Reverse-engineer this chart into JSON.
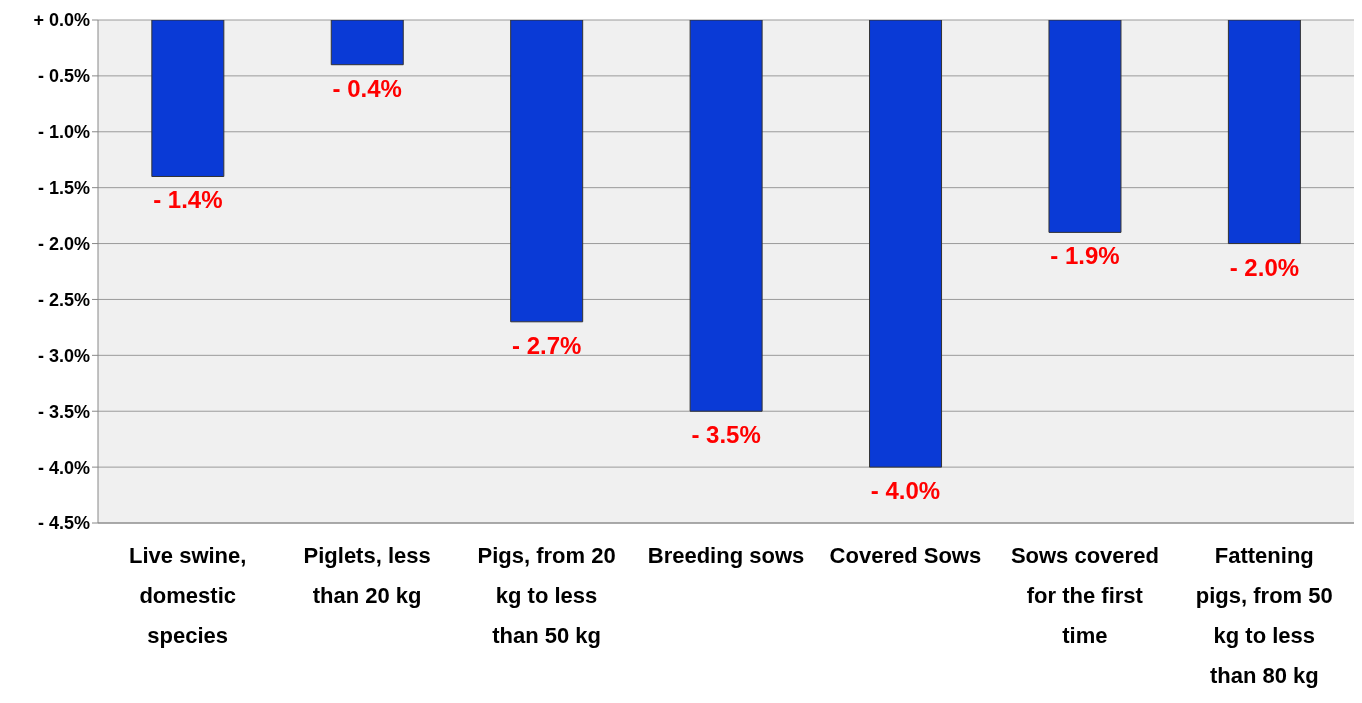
{
  "chart_data": {
    "type": "bar",
    "categories": [
      "Live swine, domestic species",
      "Piglets, less than 20 kg",
      "Pigs, from 20 kg to less than 50 kg",
      "Breeding sows",
      "Covered Sows",
      "Sows covered for the first time",
      "Fattening pigs, from 50 kg to less than 80 kg"
    ],
    "values": [
      -1.4,
      -0.4,
      -2.7,
      -3.5,
      -4.0,
      -1.9,
      -2.0
    ],
    "value_labels": [
      "- 1.4%",
      "- 0.4%",
      "- 2.7%",
      "- 3.5%",
      "- 4.0%",
      "- 1.9%",
      "- 2.0%"
    ],
    "color": "#0a3ad6",
    "ylim": [
      -4.5,
      0
    ],
    "yticks": [
      {
        "value": 0,
        "label": "+ 0.0%"
      },
      {
        "value": -0.5,
        "label": "- 0.5%"
      },
      {
        "value": -1,
        "label": "- 1.0%"
      },
      {
        "value": -1.5,
        "label": "- 1.5%"
      },
      {
        "value": -2,
        "label": "- 2.0%"
      },
      {
        "value": -2.5,
        "label": "- 2.5%"
      },
      {
        "value": -3,
        "label": "- 3.0%"
      },
      {
        "value": -3.5,
        "label": "- 3.5%"
      },
      {
        "value": -4,
        "label": "- 4.0%"
      },
      {
        "value": -4.5,
        "label": "- 4.5%"
      }
    ],
    "grid": "y"
  }
}
